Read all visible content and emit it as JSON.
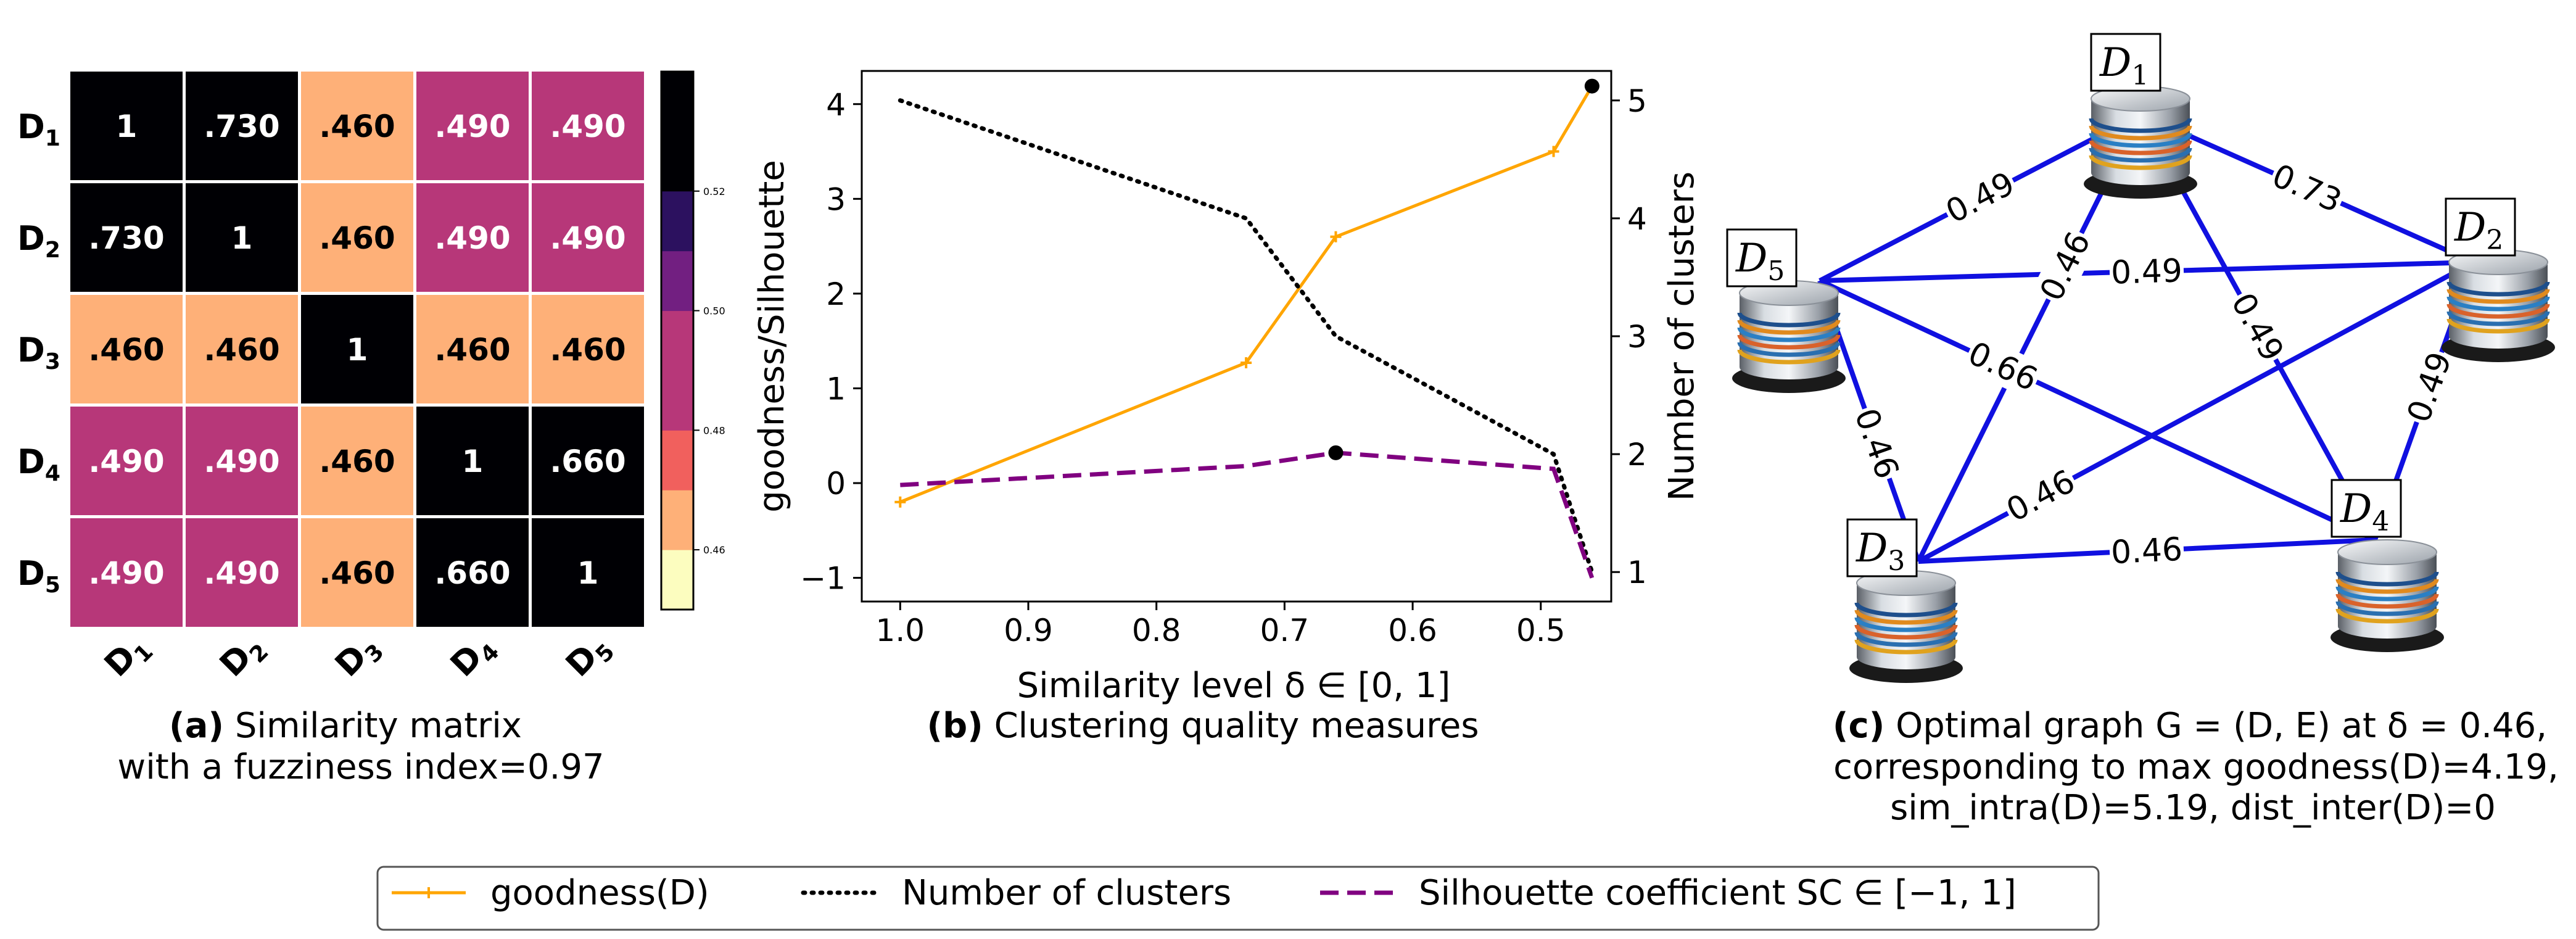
{
  "chart_data": [
    {
      "type": "heatmap",
      "rows": [
        "D1",
        "D2",
        "D3",
        "D4",
        "D5"
      ],
      "cols": [
        "D1",
        "D2",
        "D3",
        "D4",
        "D5"
      ],
      "values": [
        [
          1,
          0.73,
          0.46,
          0.49,
          0.49
        ],
        [
          0.73,
          1,
          0.46,
          0.49,
          0.49
        ],
        [
          0.46,
          0.46,
          1,
          0.46,
          0.46
        ],
        [
          0.49,
          0.49,
          0.46,
          1,
          0.66
        ],
        [
          0.49,
          0.49,
          0.46,
          0.66,
          1
        ]
      ],
      "cell_labels": [
        [
          "1",
          ".730",
          ".460",
          ".490",
          ".490"
        ],
        [
          ".730",
          "1",
          ".460",
          ".490",
          ".490"
        ],
        [
          ".460",
          ".460",
          "1",
          ".460",
          ".460"
        ],
        [
          ".490",
          ".490",
          ".460",
          "1",
          ".660"
        ],
        [
          ".490",
          ".490",
          ".460",
          ".660",
          "1"
        ]
      ],
      "colorbar": {
        "range": [
          0.45,
          0.54
        ],
        "tick_labels": [
          "0.52",
          "0.50",
          "0.48",
          "0.46"
        ],
        "tick_values": [
          0.52,
          0.5,
          0.48,
          0.46
        ],
        "bands": [
          {
            "from": 0.45,
            "to": 0.46,
            "color": "#fcfdbf"
          },
          {
            "from": 0.46,
            "to": 0.47,
            "color": "#feb078"
          },
          {
            "from": 0.47,
            "to": 0.48,
            "color": "#f1605d"
          },
          {
            "from": 0.48,
            "to": 0.5,
            "color": "#b73779"
          },
          {
            "from": 0.5,
            "to": 0.51,
            "color": "#721f81"
          },
          {
            "from": 0.51,
            "to": 0.52,
            "color": "#2c115f"
          },
          {
            "from": 0.52,
            "to": 0.54,
            "color": "#000004"
          }
        ]
      },
      "caption_bold": "(a)",
      "caption_line1": " Similarity matrix",
      "caption_line2": "with a fuzziness index=0.97"
    },
    {
      "type": "line",
      "xlabel": "Similarity level δ ∈ [0, 1]",
      "ylabel": "goodness/Silhouette",
      "ylabel_right": "Number of clusters",
      "xlim": [
        1.03,
        0.445
      ],
      "ylim": [
        -1.25,
        4.35
      ],
      "ylim_right": [
        0.75,
        5.25
      ],
      "xticks": [
        1.0,
        0.9,
        0.8,
        0.7,
        0.6,
        0.5
      ],
      "xtick_labels": [
        "1.0",
        "0.9",
        "0.8",
        "0.7",
        "0.6",
        "0.5"
      ],
      "yticks": [
        -1,
        0,
        1,
        2,
        3,
        4
      ],
      "ytick_labels": [
        "−1",
        "0",
        "1",
        "2",
        "3",
        "4"
      ],
      "yticks_right": [
        1,
        2,
        3,
        4,
        5
      ],
      "ytick_labels_right": [
        "1",
        "2",
        "3",
        "4",
        "5"
      ],
      "series": [
        {
          "name": "goodness(D)",
          "axis": "left",
          "color": "#ffa500",
          "style": "solid",
          "x": [
            1.0,
            0.73,
            0.66,
            0.49,
            0.46
          ],
          "y": [
            -0.2,
            1.27,
            2.6,
            3.5,
            4.19
          ]
        },
        {
          "name": "Number of clusters",
          "axis": "right",
          "color": "#000000",
          "style": "dotted",
          "x": [
            1.0,
            0.73,
            0.66,
            0.49,
            0.46
          ],
          "y": [
            5,
            4,
            3,
            2,
            1
          ]
        },
        {
          "name": "Silhouette coefficient SC ∈ [−1, 1]",
          "axis": "left",
          "color": "#800080",
          "style": "dashed",
          "x": [
            1.0,
            0.73,
            0.66,
            0.49,
            0.46
          ],
          "y": [
            -0.02,
            0.18,
            0.32,
            0.15,
            -1.0
          ]
        }
      ],
      "highlight_points": [
        {
          "x": 0.46,
          "y": 4.19
        },
        {
          "x": 0.66,
          "y": 0.32
        }
      ],
      "caption_bold": "(b)",
      "caption": " Clustering quality measures"
    },
    {
      "type": "graph",
      "nodes": [
        "D1",
        "D2",
        "D3",
        "D4",
        "D5"
      ],
      "edges": [
        {
          "from": "D1",
          "to": "D2",
          "label": "0.73"
        },
        {
          "from": "D1",
          "to": "D5",
          "label": "0.49"
        },
        {
          "from": "D1",
          "to": "D3",
          "label": "0.46"
        },
        {
          "from": "D1",
          "to": "D4",
          "label": "0.49"
        },
        {
          "from": "D5",
          "to": "D2",
          "label": "0.49"
        },
        {
          "from": "D5",
          "to": "D3",
          "label": "0.46"
        },
        {
          "from": "D5",
          "to": "D4",
          "label": "0.66"
        },
        {
          "from": "D3",
          "to": "D2",
          "label": "0.46"
        },
        {
          "from": "D3",
          "to": "D4",
          "label": "0.46"
        },
        {
          "from": "D2",
          "to": "D4",
          "label": "0.49"
        }
      ],
      "edge_color": "#1010e0",
      "caption_bold": "(c)",
      "caption_line1": "  Optimal graph G = (D, E) at δ = 0.46,",
      "caption_line2": "corresponding to max goodness(D)=4.19,",
      "caption_line3": "sim_intra(D)=5.19, dist_inter(D)=0"
    }
  ],
  "legend": [
    {
      "label": "goodness(D)",
      "color": "#ffa500",
      "style": "solid"
    },
    {
      "label": "Number of clusters",
      "color": "#000000",
      "style": "dotted"
    },
    {
      "label": "Silhouette coefficient SC ∈ [−1, 1]",
      "color": "#800080",
      "style": "dashed"
    }
  ]
}
